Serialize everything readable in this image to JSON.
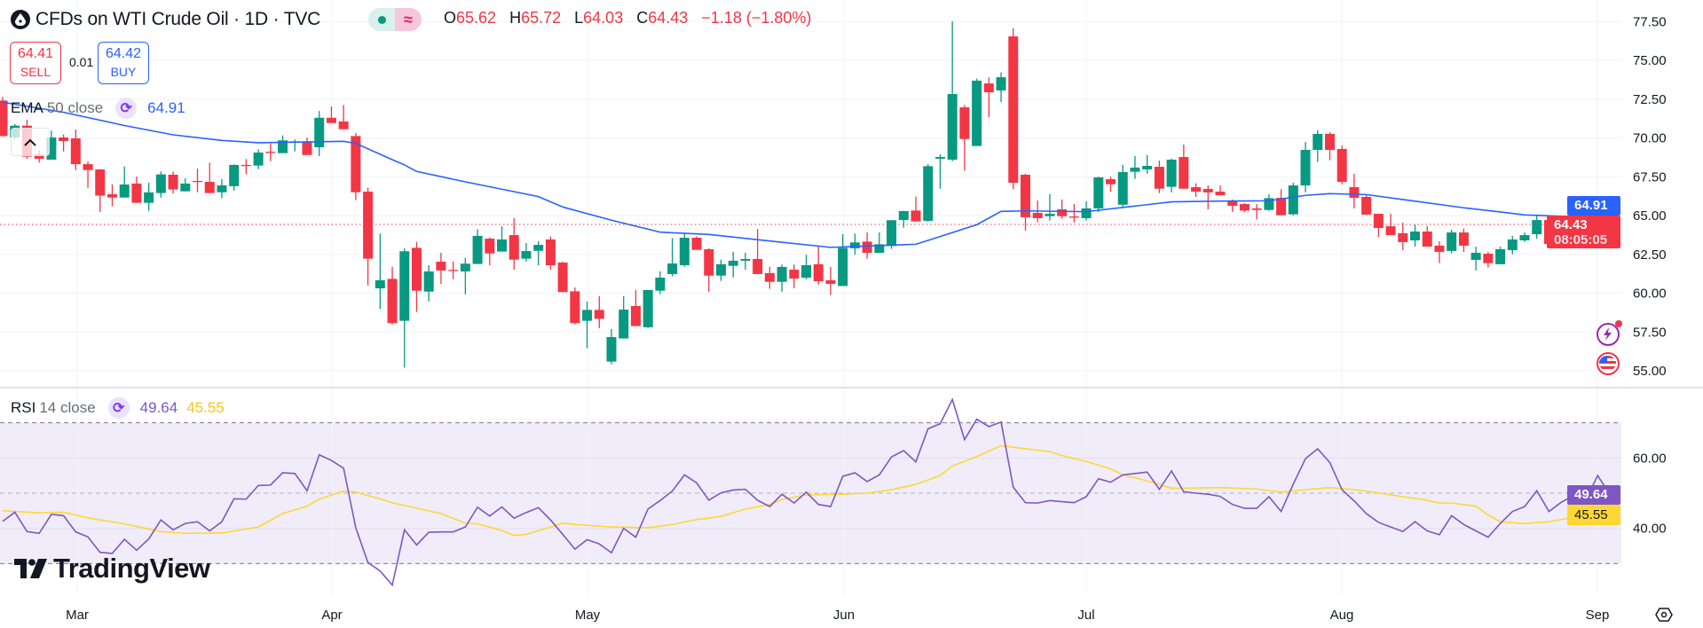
{
  "header": {
    "symbol_icon": "oil-drop-icon",
    "title": "CFDs on WTI Crude Oil · 1D · TVC",
    "market_status_icons": [
      "market-open-dot-icon",
      "delayed-data-icon"
    ],
    "delayed_glyph": "≈",
    "ohlc": {
      "o_label": "O",
      "o": "65.62",
      "h_label": "H",
      "h": "65.72",
      "l_label": "L",
      "l": "64.03",
      "c_label": "C",
      "c": "64.43",
      "change": "−1.18 (−1.80%)"
    }
  },
  "trade": {
    "sell_price": "64.41",
    "sell_label": "SELL",
    "spread": "0.01",
    "buy_price": "64.42",
    "buy_label": "BUY"
  },
  "indicators": {
    "ema": {
      "name": "EMA",
      "params": "50 close",
      "value": "64.91"
    },
    "rsi": {
      "name": "RSI",
      "params": "14 close",
      "value": "49.64",
      "ma_value": "45.55"
    }
  },
  "price_axis": {
    "ticks": [
      "55.00",
      "57.50",
      "60.00",
      "62.50",
      "65.00",
      "67.50",
      "70.00",
      "72.50",
      "75.00",
      "77.50"
    ],
    "ema_badge": "64.91",
    "last_price_badge": "64.43",
    "countdown": "08:05:05"
  },
  "rsi_axis": {
    "ticks": [
      "60.00",
      "40.00"
    ],
    "rsi_badge": "49.64",
    "ma_badge": "45.55",
    "bands": [
      70,
      50,
      30
    ]
  },
  "time_axis": {
    "labels": [
      "Mar",
      "Apr",
      "May",
      "Jun",
      "Jul",
      "Aug",
      "Sep"
    ]
  },
  "branding": {
    "logo_text": "TradingView"
  },
  "colors": {
    "up": "#089981",
    "down": "#f23645",
    "ema": "#2962ff",
    "rsi": "#7e57c2",
    "rsi_ma": "#fdd835",
    "rsi_band": "#f0ecf9"
  },
  "chart_data": {
    "type": "candlestick",
    "interval": "1D",
    "ylim": [
      54,
      78.5
    ],
    "rsi_ylim": [
      20,
      80
    ],
    "ohlc": [
      [
        72.41,
        72.64,
        70.09,
        70.12
      ],
      [
        70.03,
        70.9,
        69.9,
        70.79
      ],
      [
        70.79,
        71.17,
        68.66,
        68.79
      ],
      [
        68.94,
        69.2,
        68.41,
        68.66
      ],
      [
        68.6,
        70.47,
        68.6,
        70.03
      ],
      [
        70.03,
        70.22,
        69.13,
        69.8
      ],
      [
        69.97,
        70.54,
        67.93,
        68.31
      ],
      [
        68.31,
        68.5,
        66.79,
        67.93
      ],
      [
        67.97,
        67.99,
        65.23,
        66.28
      ],
      [
        66.37,
        67.0,
        65.59,
        66.16
      ],
      [
        66.16,
        68.16,
        66.16,
        67.0
      ],
      [
        67.06,
        67.51,
        65.82,
        65.82
      ],
      [
        65.82,
        67.11,
        65.3,
        66.49
      ],
      [
        66.45,
        67.84,
        66.16,
        67.65
      ],
      [
        67.63,
        67.84,
        66.41,
        66.68
      ],
      [
        66.56,
        67.4,
        66.56,
        67.06
      ],
      [
        67.23,
        68.03,
        66.5,
        67.17
      ],
      [
        67.17,
        68.41,
        66.45,
        66.45
      ],
      [
        66.5,
        67.36,
        66.12,
        66.94
      ],
      [
        66.89,
        68.3,
        66.6,
        68.26
      ],
      [
        68.26,
        68.64,
        67.65,
        68.22
      ],
      [
        68.22,
        69.27,
        67.99,
        69.06
      ],
      [
        69.11,
        69.65,
        68.5,
        69.08
      ],
      [
        69.02,
        70.16,
        69.02,
        69.84
      ],
      [
        69.74,
        69.9,
        69.13,
        69.78
      ],
      [
        69.78,
        70.03,
        68.9,
        68.9
      ],
      [
        69.4,
        71.74,
        68.83,
        71.3
      ],
      [
        71.3,
        72.03,
        70.96,
        70.96
      ],
      [
        71.06,
        72.12,
        70.56,
        70.56
      ],
      [
        70.12,
        70.31,
        65.99,
        66.5
      ],
      [
        66.54,
        66.79,
        60.5,
        62.22
      ],
      [
        60.31,
        63.84,
        58.98,
        60.83
      ],
      [
        60.92,
        61.69,
        57.99,
        58.07
      ],
      [
        58.22,
        62.89,
        55.21,
        62.7
      ],
      [
        62.92,
        63.3,
        58.79,
        60.16
      ],
      [
        60.1,
        61.8,
        59.46,
        61.4
      ],
      [
        62.03,
        62.6,
        60.6,
        61.46
      ],
      [
        61.5,
        62.03,
        60.9,
        61.46
      ],
      [
        61.4,
        62.28,
        59.93,
        61.9
      ],
      [
        61.88,
        64.12,
        61.88,
        63.69
      ],
      [
        63.51,
        63.59,
        61.8,
        62.56
      ],
      [
        62.68,
        64.31,
        62.68,
        63.46
      ],
      [
        63.74,
        64.83,
        61.51,
        62.16
      ],
      [
        62.22,
        63.23,
        62.03,
        62.71
      ],
      [
        62.73,
        63.36,
        61.8,
        63.11
      ],
      [
        63.46,
        63.65,
        61.51,
        61.8
      ],
      [
        61.97,
        62.03,
        60.07,
        60.07
      ],
      [
        60.12,
        60.37,
        57.99,
        58.07
      ],
      [
        58.22,
        59.46,
        56.45,
        58.92
      ],
      [
        58.92,
        59.8,
        57.74,
        58.35
      ],
      [
        55.59,
        57.69,
        55.42,
        57.17
      ],
      [
        57.08,
        59.8,
        57.08,
        58.94
      ],
      [
        59.17,
        60.2,
        57.88,
        57.88
      ],
      [
        57.8,
        60.2,
        57.76,
        60.2
      ],
      [
        60.16,
        61.4,
        59.93,
        61.0
      ],
      [
        61.23,
        63.55,
        61.08,
        61.91
      ],
      [
        61.8,
        63.88,
        61.7,
        63.57
      ],
      [
        63.57,
        63.65,
        62.79,
        62.79
      ],
      [
        62.83,
        62.89,
        60.09,
        61.13
      ],
      [
        61.13,
        62.16,
        60.79,
        61.86
      ],
      [
        61.76,
        62.66,
        61.02,
        62.09
      ],
      [
        62.09,
        62.6,
        61.51,
        62.2
      ],
      [
        62.2,
        64.14,
        61.23,
        61.23
      ],
      [
        61.29,
        61.7,
        60.28,
        60.73
      ],
      [
        60.73,
        61.84,
        60.09,
        61.69
      ],
      [
        61.51,
        61.84,
        60.31,
        60.94
      ],
      [
        61.0,
        62.47,
        60.89,
        61.8
      ],
      [
        61.86,
        63.04,
        60.56,
        60.77
      ],
      [
        60.83,
        61.7,
        59.88,
        60.6
      ],
      [
        60.46,
        63.8,
        60.46,
        62.92
      ],
      [
        62.89,
        63.84,
        62.47,
        63.27
      ],
      [
        63.32,
        63.91,
        62.22,
        62.6
      ],
      [
        62.6,
        63.91,
        62.6,
        63.15
      ],
      [
        63.04,
        64.7,
        62.85,
        64.7
      ],
      [
        64.71,
        65.3,
        64.22,
        65.29
      ],
      [
        65.32,
        66.22,
        64.62,
        64.62
      ],
      [
        64.66,
        68.31,
        64.6,
        68.18
      ],
      [
        68.66,
        68.94,
        66.73,
        68.77
      ],
      [
        68.6,
        77.51,
        68.5,
        72.83
      ],
      [
        71.97,
        72.12,
        67.88,
        69.93
      ],
      [
        69.48,
        73.82,
        69.48,
        73.69
      ],
      [
        73.51,
        73.9,
        71.34,
        72.94
      ],
      [
        73.06,
        74.22,
        72.31,
        73.91
      ],
      [
        76.54,
        77.06,
        66.7,
        67.11
      ],
      [
        67.63,
        67.69,
        64.03,
        64.89
      ],
      [
        65.17,
        65.97,
        64.56,
        64.83
      ],
      [
        64.96,
        66.37,
        64.68,
        65.11
      ],
      [
        65.4,
        66.03,
        64.79,
        64.96
      ],
      [
        64.94,
        65.74,
        64.56,
        64.9
      ],
      [
        64.83,
        65.91,
        64.68,
        65.46
      ],
      [
        65.46,
        67.5,
        65.23,
        67.46
      ],
      [
        67.34,
        67.51,
        66.54,
        67.02
      ],
      [
        65.7,
        68.26,
        65.55,
        67.8
      ],
      [
        67.82,
        68.83,
        67.36,
        68.09
      ],
      [
        67.97,
        68.89,
        67.69,
        68.2
      ],
      [
        68.14,
        68.54,
        66.45,
        66.73
      ],
      [
        66.85,
        68.66,
        66.49,
        68.6
      ],
      [
        68.77,
        69.57,
        66.73,
        66.73
      ],
      [
        66.83,
        67.08,
        66.2,
        66.54
      ],
      [
        66.71,
        66.94,
        65.4,
        66.49
      ],
      [
        66.54,
        66.94,
        66.31,
        66.31
      ],
      [
        65.97,
        66.03,
        65.23,
        65.63
      ],
      [
        65.74,
        65.8,
        65.23,
        65.32
      ],
      [
        65.46,
        65.74,
        64.75,
        65.36
      ],
      [
        65.36,
        66.37,
        65.3,
        66.12
      ],
      [
        66.14,
        66.7,
        65.02,
        65.02
      ],
      [
        65.08,
        67.11,
        65.02,
        66.94
      ],
      [
        66.94,
        69.74,
        66.5,
        69.23
      ],
      [
        69.23,
        70.5,
        68.45,
        70.26
      ],
      [
        70.26,
        70.37,
        68.56,
        69.23
      ],
      [
        69.29,
        69.5,
        67.02,
        67.17
      ],
      [
        66.83,
        67.69,
        65.46,
        66.14
      ],
      [
        66.2,
        66.31,
        65.02,
        65.06
      ],
      [
        65.11,
        65.11,
        63.63,
        64.2
      ],
      [
        64.31,
        65.11,
        63.74,
        63.74
      ],
      [
        63.86,
        64.54,
        62.77,
        63.29
      ],
      [
        63.4,
        64.41,
        63.0,
        63.97
      ],
      [
        63.97,
        64.31,
        63.0,
        63.0
      ],
      [
        63.06,
        63.34,
        61.93,
        62.66
      ],
      [
        62.72,
        64.09,
        62.56,
        63.91
      ],
      [
        63.91,
        64.16,
        62.66,
        63.06
      ],
      [
        62.14,
        63.0,
        61.46,
        62.6
      ],
      [
        62.54,
        62.66,
        61.65,
        61.93
      ],
      [
        61.86,
        63.0,
        61.86,
        62.83
      ],
      [
        62.77,
        63.69,
        62.5,
        63.46
      ],
      [
        63.4,
        63.91,
        63.3,
        63.74
      ],
      [
        63.8,
        65.06,
        63.51,
        64.71
      ],
      [
        64.71,
        64.8,
        63.11,
        63.17
      ],
      [
        63.23,
        64.2,
        62.94,
        63.86
      ],
      [
        63.82,
        64.66,
        63.34,
        64.31
      ],
      [
        64.26,
        64.54,
        63.85,
        63.91
      ],
      [
        63.86,
        66.03,
        63.65,
        65.57
      ],
      [
        65.62,
        65.72,
        64.03,
        64.43
      ]
    ],
    "ema50_points": [
      [
        1,
        72.3
      ],
      [
        6,
        71.65
      ],
      [
        11,
        70.8
      ],
      [
        15,
        70.2
      ],
      [
        19,
        69.84
      ],
      [
        22,
        69.69
      ],
      [
        29,
        69.78
      ],
      [
        30,
        69.65
      ],
      [
        33,
        68.6
      ],
      [
        34,
        68.26
      ],
      [
        35,
        67.84
      ],
      [
        39,
        67.17
      ],
      [
        45,
        66.22
      ],
      [
        47,
        65.55
      ],
      [
        51,
        64.7
      ],
      [
        55,
        63.93
      ],
      [
        59,
        63.78
      ],
      [
        64,
        63.36
      ],
      [
        69,
        62.95
      ],
      [
        76,
        63.15
      ],
      [
        78,
        63.65
      ],
      [
        81,
        64.41
      ],
      [
        83,
        65.27
      ],
      [
        85,
        65.3
      ],
      [
        90,
        65.25
      ],
      [
        95,
        65.7
      ],
      [
        97,
        65.88
      ],
      [
        101,
        65.93
      ],
      [
        105,
        65.95
      ],
      [
        108,
        66.3
      ],
      [
        110,
        66.41
      ],
      [
        113,
        66.35
      ],
      [
        116,
        66.03
      ],
      [
        121,
        65.5
      ],
      [
        124,
        65.23
      ],
      [
        126,
        65.04
      ],
      [
        131,
        64.9
      ],
      [
        133,
        64.91
      ]
    ],
    "rsi": [
      42,
      44.6,
      39.1,
      38.6,
      44.0,
      43.6,
      39.0,
      37.6,
      33.2,
      32.9,
      36.9,
      33.8,
      37.0,
      42.4,
      39.6,
      41.4,
      41.9,
      39.3,
      41.9,
      48.4,
      48.3,
      52.2,
      52.3,
      55.8,
      55.6,
      50.7,
      60.9,
      59.3,
      57.1,
      40.2,
      30.3,
      27.9,
      23.9,
      39.6,
      35.3,
      38.9,
      39.0,
      39.0,
      40.4,
      46.0,
      43.5,
      46.1,
      42.9,
      44.5,
      45.9,
      42.4,
      38.3,
      34.1,
      36.8,
      35.6,
      33.1,
      40.0,
      37.5,
      45.5,
      47.9,
      50.6,
      55.2,
      52.9,
      48.0,
      50.1,
      50.9,
      51.1,
      48.0,
      46.2,
      49.7,
      47.2,
      50.3,
      46.8,
      46.2,
      54.8,
      55.8,
      53.3,
      55.2,
      60.3,
      62.1,
      58.9,
      68.3,
      69.7,
      76.6,
      65.2,
      71.0,
      68.9,
      70.2,
      51.7,
      47.3,
      47.2,
      47.9,
      47.6,
      47.3,
      49.0,
      54.1,
      53.1,
      55.2,
      55.6,
      56.0,
      51.1,
      56.3,
      50.4,
      50.0,
      49.7,
      49.1,
      46.8,
      45.7,
      45.7,
      49.0,
      44.8,
      52.6,
      59.8,
      62.6,
      58.7,
      51.0,
      47.8,
      44.2,
      41.7,
      40.4,
      39.1,
      41.9,
      39.3,
      38.2,
      43.6,
      41.1,
      39.3,
      37.5,
      41.4,
      44.8,
      46.2,
      50.7,
      44.8,
      47.4,
      49.3,
      48.0,
      55.0,
      49.64
    ],
    "rsi_ma_points": [
      [
        1,
        45.0
      ],
      [
        4,
        44.4
      ],
      [
        6,
        44.6
      ],
      [
        8,
        43.0
      ],
      [
        11,
        41.3
      ],
      [
        14,
        39.1
      ],
      [
        16,
        38.6
      ],
      [
        19,
        38.7
      ],
      [
        22,
        40.4
      ],
      [
        24,
        44.2
      ],
      [
        26,
        46.3
      ],
      [
        27,
        48.3
      ],
      [
        29,
        50.6
      ],
      [
        30,
        50.3
      ],
      [
        32,
        48.4
      ],
      [
        33,
        47.3
      ],
      [
        34,
        46.5
      ],
      [
        37,
        44.2
      ],
      [
        39,
        41.5
      ],
      [
        40,
        41.3
      ],
      [
        42,
        39.4
      ],
      [
        43,
        38.0
      ],
      [
        44,
        38.3
      ],
      [
        46,
        40.4
      ],
      [
        47,
        41.5
      ],
      [
        48,
        41.1
      ],
      [
        51,
        40.4
      ],
      [
        54,
        40.2
      ],
      [
        56,
        41.1
      ],
      [
        58,
        42.5
      ],
      [
        60,
        43.4
      ],
      [
        62,
        45.5
      ],
      [
        64,
        46.8
      ],
      [
        65,
        48.2
      ],
      [
        67,
        49.5
      ],
      [
        70,
        49.7
      ],
      [
        72,
        50.0
      ],
      [
        74,
        51.0
      ],
      [
        76,
        52.5
      ],
      [
        78,
        55.0
      ],
      [
        79,
        57.7
      ],
      [
        81,
        60.4
      ],
      [
        83,
        63.5
      ],
      [
        85,
        62.6
      ],
      [
        87,
        61.8
      ],
      [
        88,
        60.7
      ],
      [
        90,
        59.0
      ],
      [
        92,
        56.9
      ],
      [
        93,
        55.2
      ],
      [
        95,
        53.5
      ],
      [
        97,
        51.4
      ],
      [
        98,
        51.4
      ],
      [
        101,
        51.6
      ],
      [
        104,
        51.2
      ],
      [
        106,
        50.3
      ],
      [
        108,
        51.0
      ],
      [
        110,
        51.6
      ],
      [
        112,
        51.0
      ],
      [
        113,
        50.6
      ],
      [
        116,
        49.0
      ],
      [
        118,
        48.0
      ],
      [
        119,
        47.2
      ],
      [
        120,
        47.2
      ],
      [
        122,
        46.3
      ],
      [
        123,
        43.8
      ],
      [
        124,
        41.9
      ],
      [
        126,
        41.4
      ],
      [
        128,
        41.9
      ],
      [
        130,
        43.1
      ],
      [
        131,
        43.6
      ],
      [
        133,
        45.55
      ]
    ],
    "last_price": 64.43
  }
}
